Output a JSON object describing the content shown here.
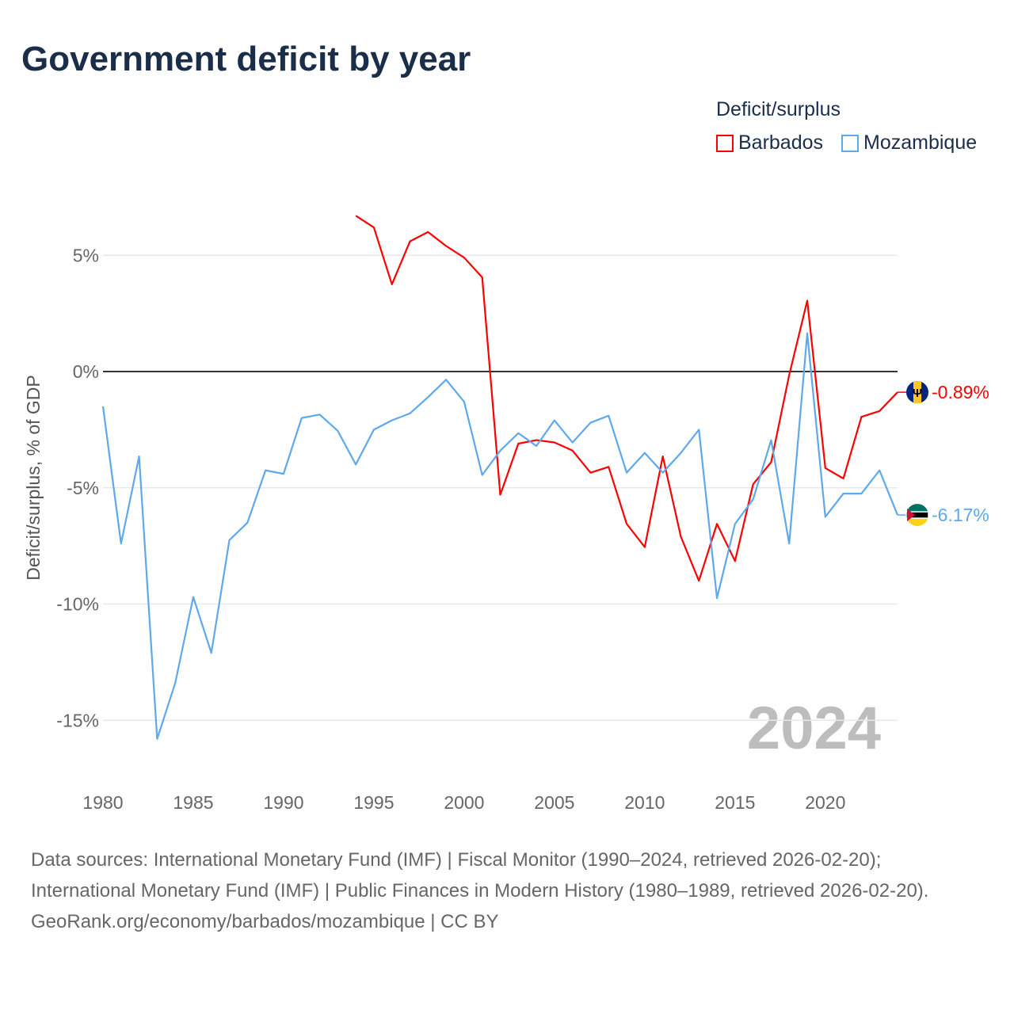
{
  "chart_data": {
    "type": "line",
    "title": "Government deficit by year",
    "xlabel": "",
    "ylabel": "Deficit/surplus, % of GDP",
    "xlim": [
      1980,
      2024
    ],
    "ylim": [
      -17,
      8
    ],
    "x_ticks": [
      1980,
      1985,
      1990,
      1995,
      2000,
      2005,
      2010,
      2015,
      2020
    ],
    "x_tick_labels": [
      "1980",
      "1985",
      "1990",
      "1995",
      "2000",
      "2005",
      "2010",
      "2015",
      "2020"
    ],
    "y_ticks": [
      5,
      0,
      -5,
      -10,
      -15
    ],
    "y_tick_labels": [
      "5%",
      "0%",
      "-5%",
      "-10%",
      "-15%"
    ],
    "grid": true,
    "legend_title": "Deficit/surplus",
    "legend_placement": "top-right",
    "year_watermark": "2024",
    "series": [
      {
        "name": "Barbados",
        "color": "#ff0000",
        "end_label": "-0.89%",
        "flag": "barbados",
        "x": [
          1994,
          1995,
          1996,
          1997,
          1998,
          1999,
          2000,
          2001,
          2002,
          2003,
          2004,
          2005,
          2006,
          2007,
          2008,
          2009,
          2010,
          2011,
          2012,
          2013,
          2014,
          2015,
          2016,
          2017,
          2018,
          2019,
          2020,
          2021,
          2022,
          2023,
          2024
        ],
        "values": [
          6.7,
          6.2,
          3.75,
          5.6,
          6.0,
          5.4,
          4.9,
          4.05,
          -5.3,
          -3.1,
          -2.95,
          -3.05,
          -3.4,
          -4.35,
          -4.1,
          -6.55,
          -7.55,
          -3.65,
          -7.1,
          -9.0,
          -6.55,
          -8.15,
          -4.85,
          -3.9,
          -0.15,
          3.05,
          -4.15,
          -4.6,
          -1.95,
          -1.7,
          -0.89
        ]
      },
      {
        "name": "Mozambique",
        "color": "#5ea8ec",
        "end_label": "-6.17%",
        "flag": "mozambique",
        "x": [
          1980,
          1981,
          1982,
          1983,
          1984,
          1985,
          1986,
          1987,
          1988,
          1989,
          1990,
          1991,
          1992,
          1993,
          1994,
          1995,
          1996,
          1997,
          1998,
          1999,
          2000,
          2001,
          2002,
          2003,
          2004,
          2005,
          2006,
          2007,
          2008,
          2009,
          2010,
          2011,
          2012,
          2013,
          2014,
          2015,
          2016,
          2017,
          2018,
          2019,
          2020,
          2021,
          2022,
          2023,
          2024
        ],
        "values": [
          -1.5,
          -7.4,
          -3.65,
          -15.8,
          -13.4,
          -9.7,
          -12.1,
          -7.25,
          -6.5,
          -4.25,
          -4.4,
          -2.0,
          -1.85,
          -2.55,
          -4.0,
          -2.5,
          -2.1,
          -1.8,
          -1.1,
          -0.35,
          -1.3,
          -4.45,
          -3.4,
          -2.65,
          -3.2,
          -2.1,
          -3.05,
          -2.2,
          -1.9,
          -4.35,
          -3.5,
          -4.35,
          -3.5,
          -2.5,
          -9.75,
          -6.55,
          -5.5,
          -2.95,
          -7.4,
          1.65,
          -6.25,
          -5.25,
          -5.25,
          -4.25,
          -6.17
        ]
      }
    ]
  },
  "footer": {
    "sources": "Data sources: International Monetary Fund (IMF) | Fiscal Monitor (1990–2024, retrieved 2026-02-20); International Monetary Fund (IMF) | Public Finances in Modern History (1980–1989, retrieved 2026-02-20).",
    "credit": "GeoRank.org/economy/barbados/mozambique | CC BY"
  }
}
